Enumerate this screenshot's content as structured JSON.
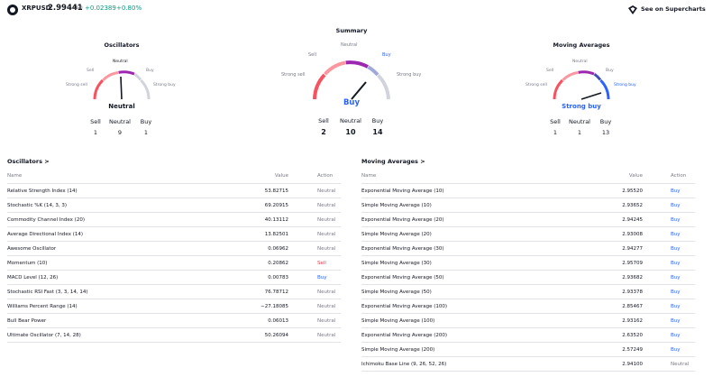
{
  "header": {
    "symbol": "XRPUSD",
    "price": "2.99441",
    "currency": "USD",
    "change": "+0.02389",
    "change_pct": "+0.80%",
    "supercharts_label": "See on Supercharts",
    "positive_color": "#089981"
  },
  "oscillators_gauge": {
    "title": "Oscillators",
    "labels": {
      "neutral": "Neutral",
      "sell": "Sell",
      "buy": "Buy",
      "strong_sell": "Strong sell",
      "strong_buy": "Strong buy"
    },
    "value": "Neutral",
    "counts": {
      "sell_label": "Sell",
      "neutral_label": "Neutral",
      "buy_label": "Buy",
      "sell": "1",
      "neutral": "9",
      "buy": "1"
    }
  },
  "summary_gauge": {
    "title": "Summary",
    "labels": {
      "neutral": "Neutral",
      "sell": "Sell",
      "buy": "Buy",
      "strong_sell": "Strong sell",
      "strong_buy": "Strong buy"
    },
    "value": "Buy",
    "counts": {
      "sell_label": "Sell",
      "neutral_label": "Neutral",
      "buy_label": "Buy",
      "sell": "2",
      "neutral": "10",
      "buy": "14"
    }
  },
  "ma_gauge": {
    "title": "Moving Averages",
    "labels": {
      "neutral": "Neutral",
      "sell": "Sell",
      "buy": "Buy",
      "strong_sell": "Strong sell",
      "strong_buy": "Strong buy"
    },
    "value": "Strong buy",
    "counts": {
      "sell_label": "Sell",
      "neutral_label": "Neutral",
      "buy_label": "Buy",
      "sell": "1",
      "neutral": "1",
      "buy": "13"
    }
  },
  "oscillators_table": {
    "title": "Oscillators",
    "chevron": ">",
    "headers": {
      "name": "Name",
      "value": "Value",
      "action": "Action"
    },
    "rows": [
      {
        "name": "Relative Strength Index (14)",
        "value": "53.82715",
        "action": "Neutral"
      },
      {
        "name": "Stochastic %K (14, 3, 3)",
        "value": "69.20915",
        "action": "Neutral"
      },
      {
        "name": "Commodity Channel Index (20)",
        "value": "40.13112",
        "action": "Neutral"
      },
      {
        "name": "Average Directional Index (14)",
        "value": "13.82501",
        "action": "Neutral"
      },
      {
        "name": "Awesome Oscillator",
        "value": "0.06962",
        "action": "Neutral"
      },
      {
        "name": "Momentum (10)",
        "value": "0.20862",
        "action": "Sell"
      },
      {
        "name": "MACD Level (12, 26)",
        "value": "0.00783",
        "action": "Buy"
      },
      {
        "name": "Stochastic RSI Fast (3, 3, 14, 14)",
        "value": "76.78712",
        "action": "Neutral"
      },
      {
        "name": "Williams Percent Range (14)",
        "value": "−27.18085",
        "action": "Neutral"
      },
      {
        "name": "Bull Bear Power",
        "value": "0.06013",
        "action": "Neutral"
      },
      {
        "name": "Ultimate Oscillator (7, 14, 28)",
        "value": "50.26094",
        "action": "Neutral"
      }
    ]
  },
  "ma_table": {
    "title": "Moving Averages",
    "chevron": ">",
    "headers": {
      "name": "Name",
      "value": "Value",
      "action": "Action"
    },
    "rows": [
      {
        "name": "Exponential Moving Average (10)",
        "value": "2.95520",
        "action": "Buy"
      },
      {
        "name": "Simple Moving Average (10)",
        "value": "2.93652",
        "action": "Buy"
      },
      {
        "name": "Exponential Moving Average (20)",
        "value": "2.94245",
        "action": "Buy"
      },
      {
        "name": "Simple Moving Average (20)",
        "value": "2.93008",
        "action": "Buy"
      },
      {
        "name": "Exponential Moving Average (30)",
        "value": "2.94277",
        "action": "Buy"
      },
      {
        "name": "Simple Moving Average (30)",
        "value": "2.95709",
        "action": "Buy"
      },
      {
        "name": "Exponential Moving Average (50)",
        "value": "2.93682",
        "action": "Buy"
      },
      {
        "name": "Simple Moving Average (50)",
        "value": "2.93378",
        "action": "Buy"
      },
      {
        "name": "Exponential Moving Average (100)",
        "value": "2.85467",
        "action": "Buy"
      },
      {
        "name": "Simple Moving Average (100)",
        "value": "2.93162",
        "action": "Buy"
      },
      {
        "name": "Exponential Moving Average (200)",
        "value": "2.63520",
        "action": "Buy"
      },
      {
        "name": "Simple Moving Average (200)",
        "value": "2.57249",
        "action": "Buy"
      },
      {
        "name": "Ichimoku Base Line (9, 26, 52, 26)",
        "value": "2.94100",
        "action": "Neutral"
      }
    ]
  },
  "colors": {
    "buy": "#2962ff",
    "sell": "#f23645",
    "neutral": "#787b86"
  }
}
